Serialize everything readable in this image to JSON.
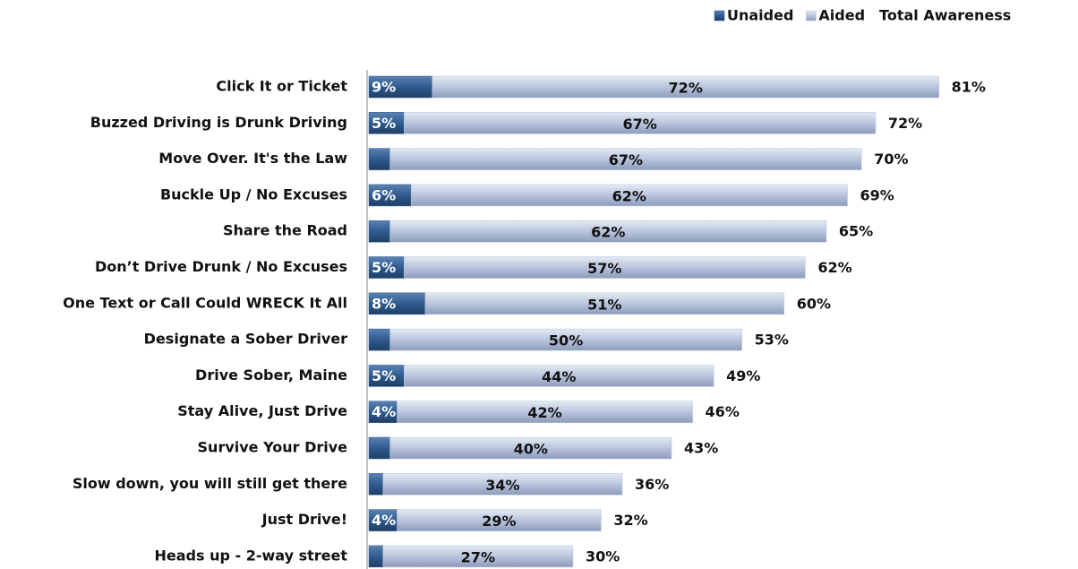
{
  "chart_data": {
    "type": "stacked-bar-horizontal",
    "categories": [
      "Click It or Ticket",
      "Buzzed Driving is Drunk Driving",
      "Move Over. It's the Law",
      "Buckle Up / No Excuses",
      "Share the Road",
      "Don’t Drive Drunk / No Excuses",
      "One Text or Call Could WRECK It All",
      "Designate a Sober Driver",
      "Drive Sober, Maine",
      "Stay Alive, Just Drive",
      "Survive Your Drive",
      "Slow down, you will still get there",
      "Just Drive!",
      "Heads up - 2-way street"
    ],
    "series": [
      {
        "name": "Unaided",
        "color": "#2f5b8e",
        "values": [
          9,
          5,
          3,
          6,
          3,
          5,
          8,
          3,
          5,
          4,
          3,
          2,
          4,
          2
        ],
        "value_labels": [
          "9%",
          "5%",
          "3%",
          "6%",
          "3%",
          "5%",
          "8%",
          "3%",
          "5%",
          "4%",
          "3%",
          "2%",
          "4%",
          "2%"
        ]
      },
      {
        "name": "Aided",
        "color": "#b9c5dd",
        "values": [
          72,
          67,
          67,
          62,
          62,
          57,
          51,
          50,
          44,
          42,
          40,
          34,
          29,
          27
        ],
        "value_labels": [
          "72%",
          "67%",
          "67%",
          "62%",
          "62%",
          "57%",
          "51%",
          "50%",
          "44%",
          "42%",
          "40%",
          "34%",
          "29%",
          "27%"
        ]
      }
    ],
    "totals": {
      "name": "Total Awareness",
      "values": [
        81,
        72,
        70,
        69,
        65,
        62,
        60,
        53,
        49,
        46,
        43,
        36,
        32,
        30
      ],
      "value_labels": [
        "81%",
        "72%",
        "70%",
        "69%",
        "65%",
        "62%",
        "60%",
        "53%",
        "49%",
        "46%",
        "43%",
        "36%",
        "32%",
        "30%"
      ]
    },
    "legend": "top-right"
  }
}
